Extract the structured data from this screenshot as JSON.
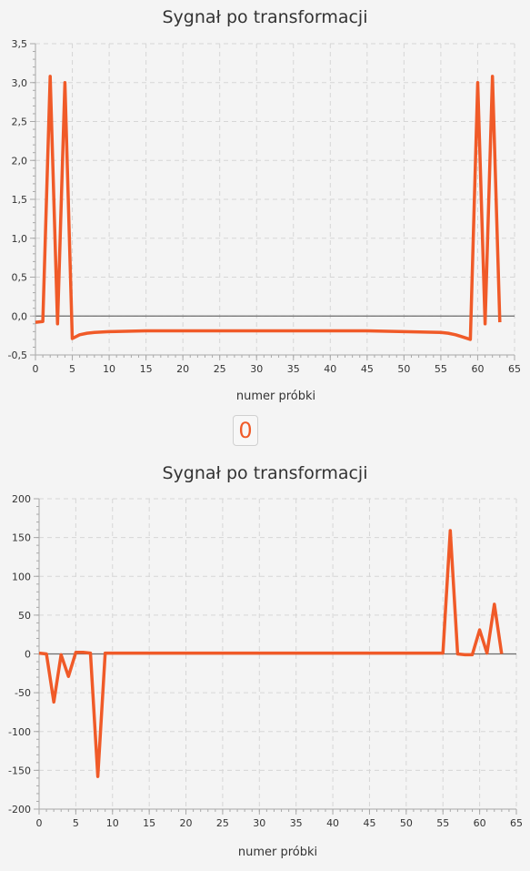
{
  "index_button": {
    "label": "0"
  },
  "colors": {
    "series": "#f05a28",
    "background": "#f4f4f4"
  },
  "chart_data": [
    {
      "type": "line",
      "title": "Sygnał po transformacji",
      "xlabel": "numer próbki",
      "ylabel": "",
      "xlim": [
        0,
        65
      ],
      "ylim": [
        -0.5,
        3.5
      ],
      "x_ticks": [
        0,
        5,
        10,
        15,
        20,
        25,
        30,
        35,
        40,
        45,
        50,
        55,
        60,
        65
      ],
      "y_ticks": [
        -0.5,
        0,
        0.5,
        1,
        1.5,
        2,
        2.5,
        3,
        3.5
      ],
      "y_tick_labels": [
        "-0,5",
        "0,0",
        "0,5",
        "1,0",
        "1,5",
        "2,0",
        "2,5",
        "3,0",
        "3,5"
      ],
      "grid": true,
      "series": [
        {
          "x": [
            0,
            1,
            2,
            3,
            4,
            5,
            6,
            7,
            8,
            10,
            15,
            20,
            25,
            30,
            35,
            40,
            45,
            50,
            55,
            56,
            57,
            58,
            59,
            60,
            61,
            62,
            63
          ],
          "y": [
            -0.08,
            -0.07,
            3.08,
            -0.1,
            3.0,
            -0.29,
            -0.24,
            -0.22,
            -0.21,
            -0.2,
            -0.19,
            -0.19,
            -0.19,
            -0.19,
            -0.19,
            -0.19,
            -0.19,
            -0.2,
            -0.21,
            -0.22,
            -0.24,
            -0.27,
            -0.3,
            3.0,
            -0.1,
            3.08,
            -0.08
          ]
        }
      ]
    },
    {
      "type": "line",
      "title": "Sygnał po transformacji",
      "xlabel": "numer próbki",
      "ylabel": "",
      "xlim": [
        0,
        65
      ],
      "ylim": [
        -200,
        200
      ],
      "x_ticks": [
        0,
        5,
        10,
        15,
        20,
        25,
        30,
        35,
        40,
        45,
        50,
        55,
        60,
        65
      ],
      "y_ticks": [
        -200,
        -150,
        -100,
        -50,
        0,
        50,
        100,
        150,
        200
      ],
      "y_tick_labels": [
        "-200",
        "-150",
        "-100",
        "-50",
        "0",
        "50",
        "100",
        "150",
        "200"
      ],
      "grid": true,
      "series": [
        {
          "x": [
            0,
            1,
            2,
            3,
            4,
            5,
            6,
            7,
            8,
            9,
            10,
            20,
            30,
            40,
            50,
            55,
            56,
            57,
            58,
            59,
            60,
            61,
            62,
            63
          ],
          "y": [
            1,
            0,
            -62,
            -1,
            -29,
            2,
            2,
            1,
            -158,
            1,
            1,
            1,
            1,
            1,
            1,
            1,
            159,
            0,
            -1,
            -1,
            31,
            1,
            64,
            0
          ]
        }
      ]
    }
  ]
}
